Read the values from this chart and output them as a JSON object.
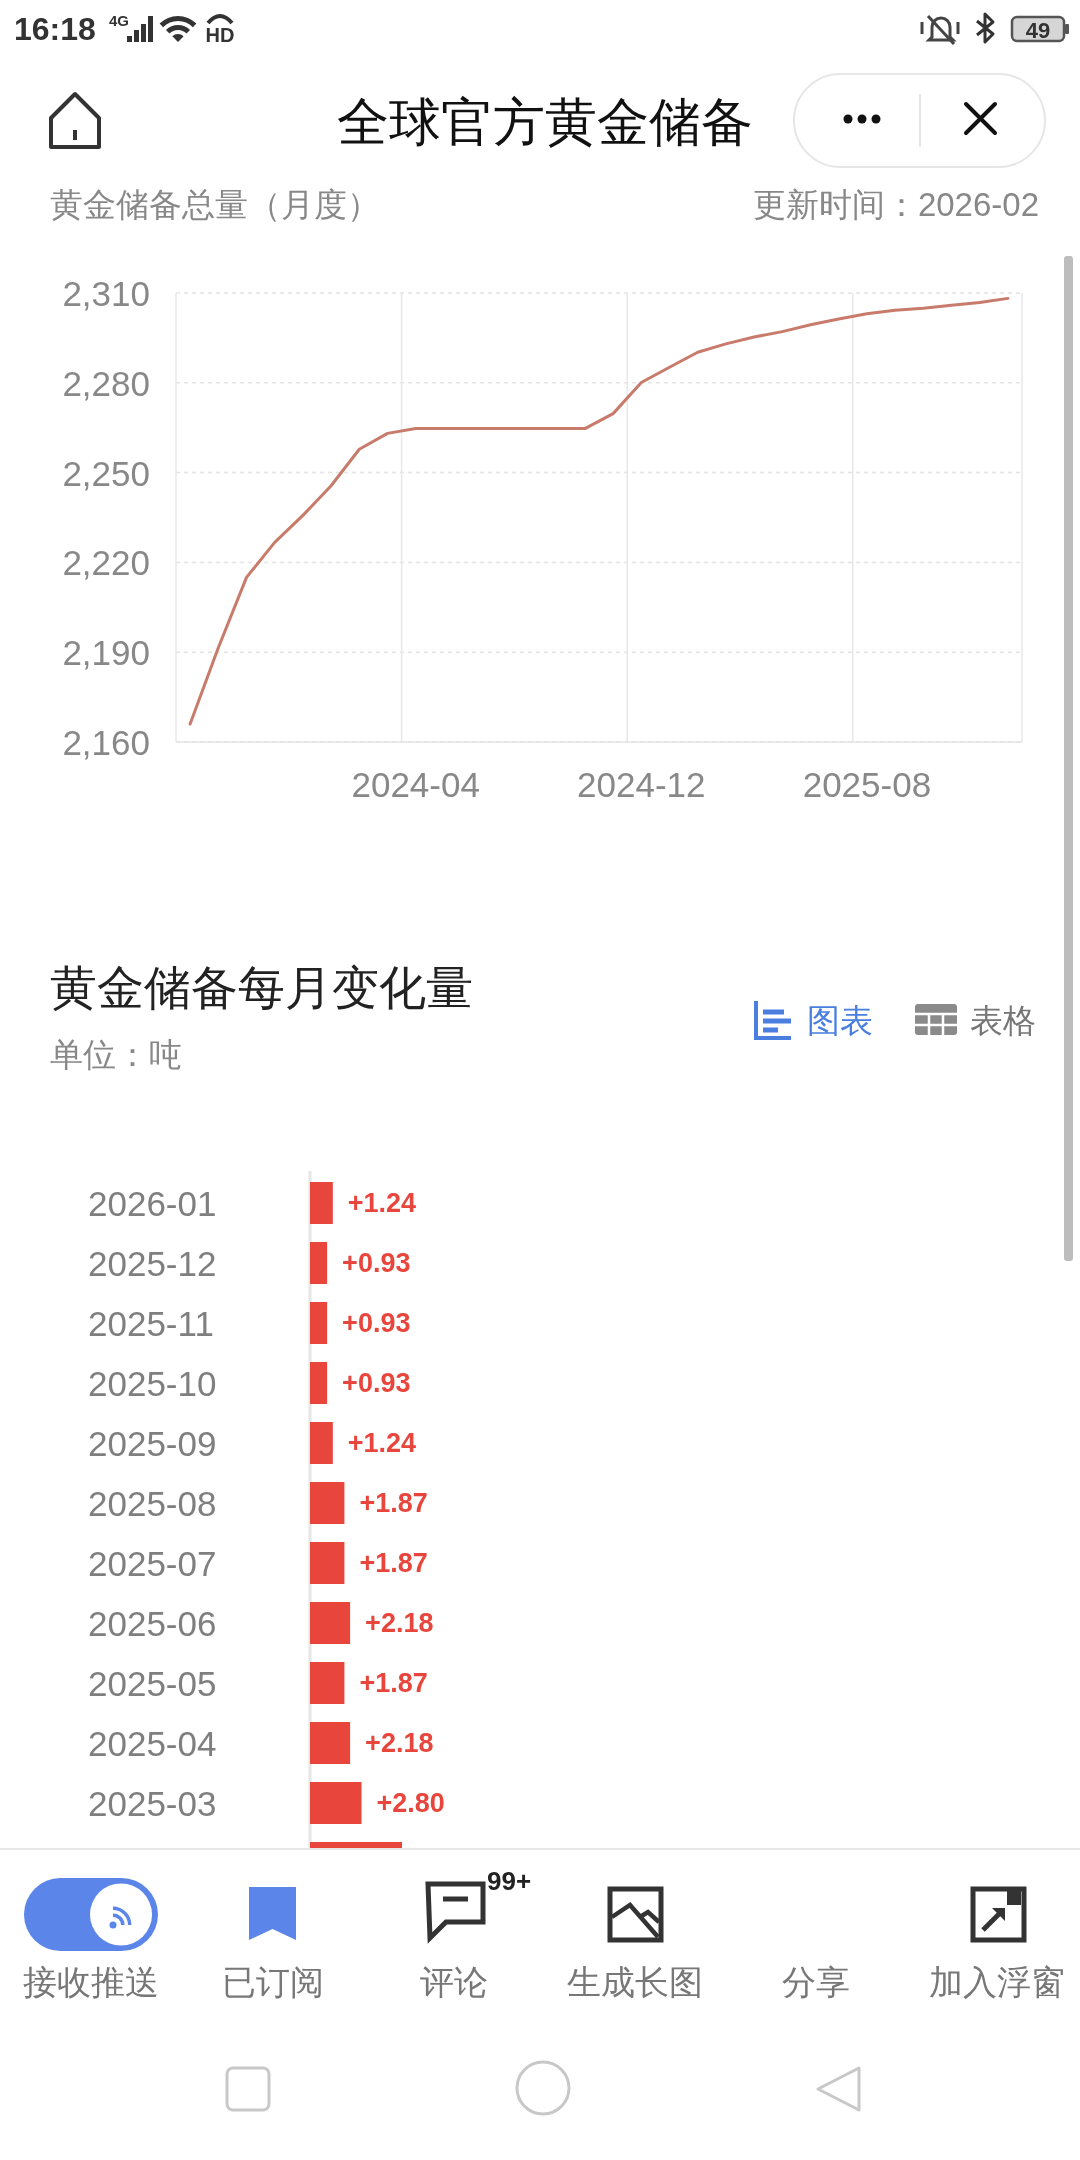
{
  "chart_data": [
    {
      "type": "line",
      "title": "黄金储备总量（月度）",
      "annotations": [
        "16:18",
        "4G",
        "HD",
        "49",
        "全球官方黄金储备",
        "更新时间：2026-02"
      ],
      "categories": [
        null,
        null,
        null,
        null,
        null,
        null,
        null,
        null,
        "2024-04",
        null,
        null,
        null,
        null,
        null,
        null,
        null,
        "2024-12",
        null,
        null,
        null,
        null,
        null,
        null,
        null,
        "2025-08",
        null,
        null,
        null,
        null,
        null
      ],
      "series": [
        {
          "color": "#c97b6b",
          "values": [
            2166.0,
            2191.5,
            2215.0,
            2226.7,
            2235.7,
            2245.6,
            2257.8,
            2263.1,
            2264.7,
            2264.7,
            2264.7,
            2264.7,
            2264.7,
            2264.7,
            2264.7,
            2269.7,
            2280.1,
            2285.2,
            2290.2,
            2293.0,
            2295.3,
            2297.1,
            2299.4,
            2301.3,
            2303.1,
            2304.2,
            2304.9,
            2305.9,
            2306.8,
            2308.2
          ]
        }
      ],
      "ylim": [
        2160,
        2310
      ],
      "yticks": [
        {
          "value": 2160,
          "label": "2,160"
        },
        {
          "value": 2190,
          "label": "2,190"
        },
        {
          "value": 2220,
          "label": "2,220"
        },
        {
          "value": 2250,
          "label": "2,250"
        },
        {
          "value": 2280,
          "label": "2,280"
        },
        {
          "value": 2310,
          "label": "2,310"
        }
      ],
      "grid": true
    },
    {
      "type": "bar",
      "orientation": "horizontal",
      "title": "黄金储备每月变化量",
      "subtitle": "单位：吨",
      "annotations": [
        "图表",
        "表格",
        "接收推送",
        "已订阅",
        "评论",
        "99+",
        "生成长图",
        "分享",
        "加入浮窗"
      ],
      "categories": [
        "2026-01",
        "2025-12",
        "2025-11",
        "2025-10",
        "2025-09",
        "2025-08",
        "2025-07",
        "2025-06",
        "2025-05",
        "2025-04",
        "2025-03",
        null
      ],
      "values": [
        1.24,
        0.93,
        0.93,
        0.93,
        1.24,
        1.87,
        1.87,
        2.18,
        1.87,
        2.18,
        2.8,
        5.0
      ],
      "color": "#e8453c",
      "value_labels": [
        "+1.24",
        "+0.93",
        "+0.93",
        "+0.93",
        "+1.24",
        "+1.87",
        "+1.87",
        "+2.18",
        "+1.87",
        "+2.18",
        "+2.80",
        null
      ],
      "tick_labels": "y"
    }
  ]
}
